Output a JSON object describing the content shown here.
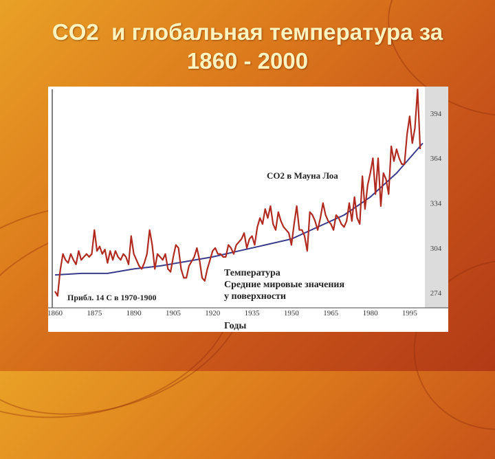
{
  "slide": {
    "title_line1": "CO2  и глобальная температура за",
    "title_line2": "1860 - 2000"
  },
  "chart_data": {
    "type": "line",
    "xlabel": "Годы",
    "x_ticks": [
      1860,
      1875,
      1890,
      1905,
      1920,
      1935,
      1950,
      1965,
      1980,
      1995
    ],
    "y_right_ticks": [
      274,
      304,
      334,
      364,
      394
    ],
    "xlim": [
      1860,
      2000
    ],
    "y_right_lim": [
      264,
      410
    ],
    "annotations": {
      "co2_label": "CO2  в Мауна Лоа",
      "temp_label_line1": "Температура",
      "temp_label_line2": "Средние мировые значения",
      "temp_label_line3": "у поверхности",
      "baseline_note": "Прибл. 14 С в 1970-1900"
    },
    "series": [
      {
        "name": "CO2  в Мауна Лоа",
        "color": "#3a3a8c",
        "x": [
          1860,
          1870,
          1880,
          1890,
          1900,
          1910,
          1920,
          1930,
          1940,
          1950,
          1960,
          1970,
          1980,
          1990,
          2000
        ],
        "y": [
          286,
          287,
          287,
          290,
          292,
          295,
          298,
          302,
          306,
          310,
          318,
          326,
          338,
          354,
          374
        ]
      },
      {
        "name": "Температура",
        "color": "#b02a20",
        "x": [
          1860,
          1861,
          1862,
          1863,
          1864,
          1865,
          1866,
          1867,
          1868,
          1869,
          1870,
          1871,
          1872,
          1873,
          1874,
          1875,
          1876,
          1877,
          1878,
          1879,
          1880,
          1881,
          1882,
          1883,
          1884,
          1885,
          1886,
          1887,
          1888,
          1889,
          1890,
          1891,
          1892,
          1893,
          1894,
          1895,
          1896,
          1897,
          1898,
          1899,
          1900,
          1901,
          1902,
          1903,
          1904,
          1905,
          1906,
          1907,
          1908,
          1909,
          1910,
          1911,
          1912,
          1913,
          1914,
          1915,
          1916,
          1917,
          1918,
          1919,
          1920,
          1921,
          1922,
          1923,
          1924,
          1925,
          1926,
          1927,
          1928,
          1929,
          1930,
          1931,
          1932,
          1933,
          1934,
          1935,
          1936,
          1937,
          1938,
          1939,
          1940,
          1941,
          1942,
          1943,
          1944,
          1945,
          1946,
          1947,
          1948,
          1949,
          1950,
          1951,
          1952,
          1953,
          1954,
          1955,
          1956,
          1957,
          1958,
          1959,
          1960,
          1961,
          1962,
          1963,
          1964,
          1965,
          1966,
          1967,
          1968,
          1969,
          1970,
          1971,
          1972,
          1973,
          1974,
          1975,
          1976,
          1977,
          1978,
          1979,
          1980,
          1981,
          1982,
          1983,
          1984,
          1985,
          1986,
          1987,
          1988,
          1989,
          1990,
          1991,
          1992,
          1993,
          1994,
          1995,
          1996,
          1997,
          1998,
          1999
        ],
        "y": [
          275,
          272,
          289,
          300,
          296,
          294,
          300,
          296,
          293,
          302,
          296,
          298,
          300,
          298,
          300,
          316,
          302,
          305,
          300,
          303,
          294,
          302,
          296,
          302,
          298,
          296,
          300,
          298,
          293,
          312,
          300,
          296,
          292,
          290,
          294,
          300,
          316,
          306,
          290,
          300,
          298,
          296,
          300,
          290,
          288,
          298,
          306,
          304,
          290,
          284,
          284,
          292,
          295,
          298,
          304,
          296,
          284,
          282,
          290,
          296,
          302,
          304,
          300,
          300,
          298,
          298,
          306,
          304,
          300,
          306,
          308,
          310,
          314,
          304,
          310,
          312,
          306,
          318,
          324,
          320,
          330,
          324,
          332,
          320,
          316,
          328,
          322,
          318,
          316,
          314,
          306,
          320,
          332,
          316,
          316,
          312,
          302,
          328,
          326,
          322,
          316,
          324,
          334,
          326,
          322,
          320,
          316,
          326,
          324,
          320,
          318,
          322,
          334,
          322,
          338,
          324,
          320,
          352,
          330,
          346,
          354,
          364,
          340,
          364,
          332,
          354,
          350,
          340,
          372,
          362,
          370,
          364,
          360,
          360,
          380,
          392,
          374,
          384,
          410,
          370
        ]
      }
    ]
  }
}
